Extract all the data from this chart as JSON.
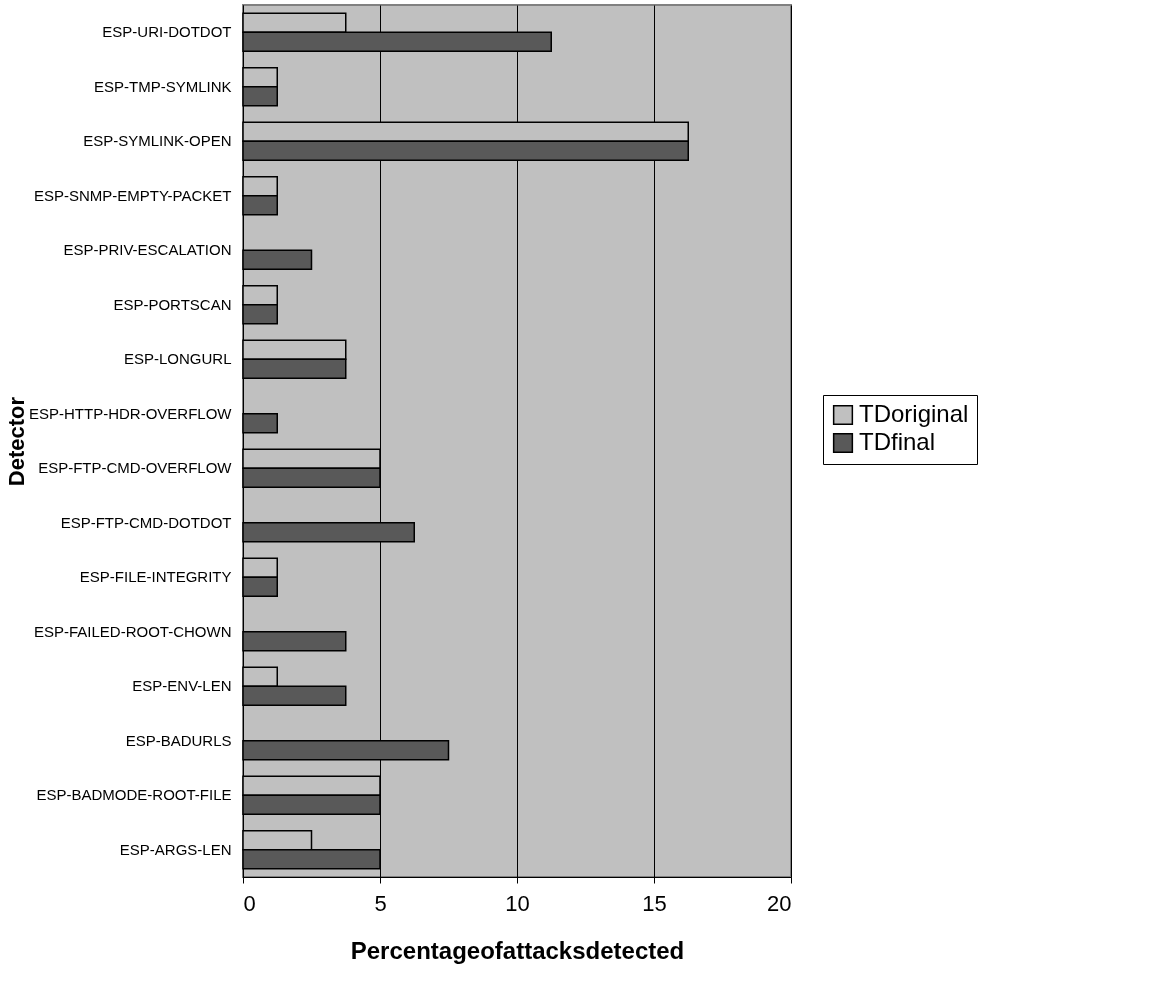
{
  "chart_data": {
    "type": "bar",
    "orientation": "horizontal",
    "xlabel": "Percentageofattacksdetected",
    "ylabel": "Detector",
    "categories": [
      "ESP-URI-DOTDOT",
      "ESP-TMP-SYMLINK",
      "ESP-SYMLINK-OPEN",
      "ESP-SNMP-EMPTY-PACKET",
      "ESP-PRIV-ESCALATION",
      "ESP-PORTSCAN",
      "ESP-LONGURL",
      "ESP-HTTP-HDR-OVERFLOW",
      "ESP-FTP-CMD-OVERFLOW",
      "ESP-FTP-CMD-DOTDOT",
      "ESP-FILE-INTEGRITY",
      "ESP-FAILED-ROOT-CHOWN",
      "ESP-ENV-LEN",
      "ESP-BADURLS",
      "ESP-BADMODE-ROOT-FILE",
      "ESP-ARGS-LEN"
    ],
    "series": [
      {
        "name": "TDoriginal",
        "color": "#c0c0c0",
        "values": [
          3.75,
          1.25,
          16.25,
          1.25,
          0,
          1.25,
          3.75,
          0,
          5,
          0,
          1.25,
          0,
          1.25,
          0,
          5,
          2.5
        ]
      },
      {
        "name": "TDfinal",
        "color": "#595959",
        "values": [
          11.25,
          1.25,
          16.25,
          1.25,
          2.5,
          1.25,
          3.75,
          1.25,
          5,
          6.25,
          1.25,
          3.75,
          3.75,
          7.5,
          5,
          5
        ]
      }
    ],
    "xlim": [
      0,
      20
    ],
    "xticks": [
      0,
      5,
      10,
      15,
      20
    ],
    "grid": "x",
    "legend": "right"
  }
}
